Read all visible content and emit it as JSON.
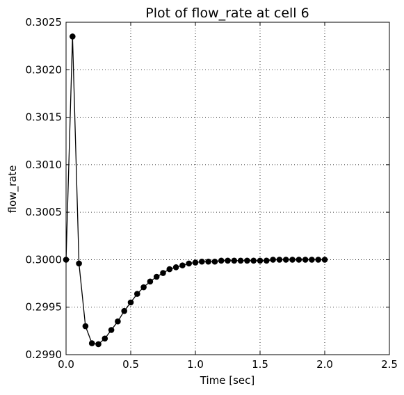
{
  "chart_data": {
    "type": "line",
    "title": "Plot of flow_rate at cell 6",
    "xlabel": "Time [sec]",
    "ylabel": "flow_rate",
    "xlim": [
      0.0,
      2.5
    ],
    "ylim": [
      0.299,
      0.3025
    ],
    "grid": true,
    "x_ticks": [
      "0.0",
      "0.5",
      "1.0",
      "1.5",
      "2.0",
      "2.5"
    ],
    "y_ticks": [
      "0.2990",
      "0.2995",
      "0.3000",
      "0.3005",
      "0.3010",
      "0.3015",
      "0.3020",
      "0.3025"
    ],
    "series": [
      {
        "x": [
          0.0,
          0.05,
          0.1,
          0.15,
          0.2,
          0.25,
          0.3,
          0.35,
          0.4,
          0.45,
          0.5,
          0.55,
          0.6,
          0.65,
          0.7,
          0.75,
          0.8,
          0.85,
          0.9,
          0.95,
          1.0,
          1.05,
          1.1,
          1.15,
          1.2,
          1.25,
          1.3,
          1.35,
          1.4,
          1.45,
          1.5,
          1.55,
          1.6,
          1.65,
          1.7,
          1.75,
          1.8,
          1.85,
          1.9,
          1.95,
          2.0
        ],
        "y": [
          0.3,
          0.30235,
          0.29996,
          0.2993,
          0.29912,
          0.29911,
          0.29917,
          0.29926,
          0.29935,
          0.29946,
          0.29955,
          0.29964,
          0.29971,
          0.29977,
          0.29982,
          0.29986,
          0.2999,
          0.29992,
          0.29994,
          0.29996,
          0.29997,
          0.29998,
          0.29998,
          0.29998,
          0.29999,
          0.29999,
          0.29999,
          0.29999,
          0.29999,
          0.29999,
          0.29999,
          0.29999,
          0.3,
          0.3,
          0.3,
          0.3,
          0.3,
          0.3,
          0.3,
          0.3,
          0.3
        ],
        "color": "#000000",
        "marker": "circle"
      }
    ]
  }
}
